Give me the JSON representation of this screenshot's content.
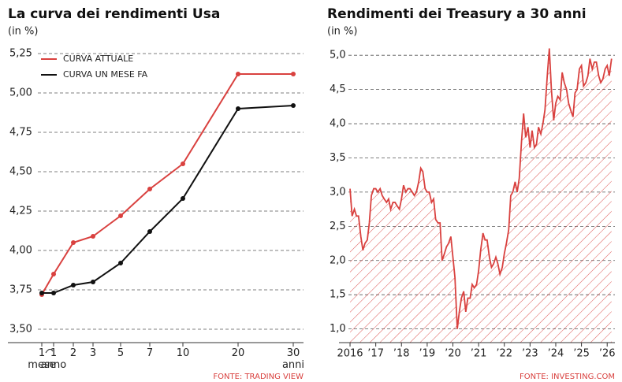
{
  "chart_data": [
    {
      "type": "line",
      "title": "La curva dei rendimenti Usa",
      "subtitle": "(in %)",
      "categories": [
        "1 mese",
        "1 anno",
        "2",
        "3",
        "5",
        "7",
        "10",
        "20",
        "30 anni"
      ],
      "series": [
        {
          "name": "CURVA ATTUALE",
          "color": "#d9413f",
          "values": [
            3.72,
            3.85,
            4.05,
            4.09,
            4.22,
            4.39,
            4.55,
            5.12,
            5.12
          ]
        },
        {
          "name": "CURVA UN MESE FA",
          "color": "#111111",
          "values": [
            3.73,
            3.73,
            3.78,
            3.8,
            3.92,
            4.12,
            4.33,
            4.9,
            4.92
          ]
        }
      ],
      "ylim": [
        3.415,
        5.34
      ],
      "yticks": [
        {
          "value": 3.5,
          "label": "3,50"
        },
        {
          "value": 3.75,
          "label": "3,75"
        },
        {
          "value": 4.0,
          "label": "4,00"
        },
        {
          "value": 4.25,
          "label": "4,25"
        },
        {
          "value": 4.5,
          "label": "4,50"
        },
        {
          "value": 4.75,
          "label": "4,75"
        },
        {
          "value": 5.0,
          "label": "5,00"
        },
        {
          "value": 5.25,
          "label": "5,25"
        }
      ],
      "grid": true,
      "legend": "upper left",
      "source": "FONTE: TRADING VIEW"
    },
    {
      "type": "area",
      "title": "Rendimenti dei Treasury a 30 anni",
      "subtitle": "(in %)",
      "x": [
        2016.0,
        2016.08,
        2016.17,
        2016.25,
        2016.33,
        2016.42,
        2016.5,
        2016.58,
        2016.67,
        2016.75,
        2016.83,
        2016.92,
        2017.0,
        2017.08,
        2017.17,
        2017.25,
        2017.33,
        2017.42,
        2017.5,
        2017.58,
        2017.67,
        2017.75,
        2017.83,
        2017.92,
        2018.0,
        2018.08,
        2018.17,
        2018.25,
        2018.33,
        2018.42,
        2018.5,
        2018.58,
        2018.67,
        2018.75,
        2018.83,
        2018.92,
        2019.0,
        2019.08,
        2019.17,
        2019.25,
        2019.33,
        2019.42,
        2019.5,
        2019.58,
        2019.67,
        2019.75,
        2019.83,
        2019.92,
        2020.0,
        2020.08,
        2020.17,
        2020.25,
        2020.33,
        2020.42,
        2020.5,
        2020.58,
        2020.67,
        2020.75,
        2020.83,
        2020.92,
        2021.0,
        2021.08,
        2021.17,
        2021.25,
        2021.33,
        2021.42,
        2021.5,
        2021.58,
        2021.67,
        2021.75,
        2021.83,
        2021.92,
        2022.0,
        2022.08,
        2022.17,
        2022.25,
        2022.33,
        2022.42,
        2022.5,
        2022.58,
        2022.67,
        2022.75,
        2022.83,
        2022.92,
        2023.0,
        2023.08,
        2023.17,
        2023.25,
        2023.33,
        2023.42,
        2023.5,
        2023.58,
        2023.67,
        2023.75,
        2023.83,
        2023.92,
        2024.0,
        2024.08,
        2024.17,
        2024.25,
        2024.33,
        2024.42,
        2024.5,
        2024.58,
        2024.67,
        2024.75,
        2024.83,
        2024.92,
        2025.0,
        2025.08,
        2025.17,
        2025.25,
        2025.33,
        2025.42,
        2025.5,
        2025.58,
        2025.67,
        2025.75,
        2025.83,
        2025.92,
        2026.0,
        2026.08,
        2026.17
      ],
      "series": [
        {
          "color": "#d9413f",
          "values": [
            3.05,
            2.65,
            2.75,
            2.65,
            2.65,
            2.35,
            2.15,
            2.25,
            2.3,
            2.55,
            2.95,
            3.05,
            3.05,
            3.0,
            3.05,
            2.95,
            2.9,
            2.85,
            2.9,
            2.75,
            2.85,
            2.85,
            2.8,
            2.75,
            2.9,
            3.1,
            3.0,
            3.05,
            3.05,
            3.0,
            2.95,
            3.0,
            3.15,
            3.35,
            3.3,
            3.05,
            3.0,
            3.0,
            2.85,
            2.9,
            2.6,
            2.55,
            2.55,
            2.0,
            2.1,
            2.2,
            2.25,
            2.35,
            2.05,
            1.75,
            1.0,
            1.25,
            1.45,
            1.55,
            1.25,
            1.45,
            1.45,
            1.65,
            1.6,
            1.65,
            1.85,
            2.15,
            2.4,
            2.3,
            2.3,
            2.05,
            1.9,
            1.95,
            2.05,
            1.95,
            1.8,
            1.9,
            2.1,
            2.25,
            2.45,
            2.95,
            3.0,
            3.15,
            3.0,
            3.2,
            3.75,
            4.15,
            3.8,
            3.95,
            3.65,
            3.9,
            3.65,
            3.7,
            3.95,
            3.85,
            4.0,
            4.2,
            4.7,
            5.1,
            4.5,
            4.05,
            4.3,
            4.4,
            4.35,
            4.75,
            4.6,
            4.5,
            4.3,
            4.2,
            4.1,
            4.45,
            4.5,
            4.8,
            4.85,
            4.55,
            4.6,
            4.7,
            4.95,
            4.8,
            4.9,
            4.9,
            4.7,
            4.6,
            4.65,
            4.8,
            4.85,
            4.7,
            4.95
          ]
        }
      ],
      "xlim": [
        2015.57,
        2026.3
      ],
      "xticks": [
        {
          "value": 2016,
          "label": "2016"
        },
        {
          "value": 2017,
          "label": "’17"
        },
        {
          "value": 2018,
          "label": "’18"
        },
        {
          "value": 2019,
          "label": "’19"
        },
        {
          "value": 2020,
          "label": "’20"
        },
        {
          "value": 2021,
          "label": "’21"
        },
        {
          "value": 2022,
          "label": "’22"
        },
        {
          "value": 2023,
          "label": "’23"
        },
        {
          "value": 2024,
          "label": "’24"
        },
        {
          "value": 2025,
          "label": "’25"
        },
        {
          "value": 2026,
          "label": "’26"
        }
      ],
      "ylim": [
        0.8,
        5.29
      ],
      "yticks": [
        {
          "value": 1.0,
          "label": "1,0"
        },
        {
          "value": 1.5,
          "label": "1,5"
        },
        {
          "value": 2.0,
          "label": "2,0"
        },
        {
          "value": 2.5,
          "label": "2,5"
        },
        {
          "value": 3.0,
          "label": "3,0"
        },
        {
          "value": 3.5,
          "label": "3,5"
        },
        {
          "value": 4.0,
          "label": "4,0"
        },
        {
          "value": 4.5,
          "label": "4,5"
        },
        {
          "value": 5.0,
          "label": "5,0"
        }
      ],
      "grid": true,
      "hatch": true,
      "source": "FONTE: INVESTING.COM"
    }
  ]
}
